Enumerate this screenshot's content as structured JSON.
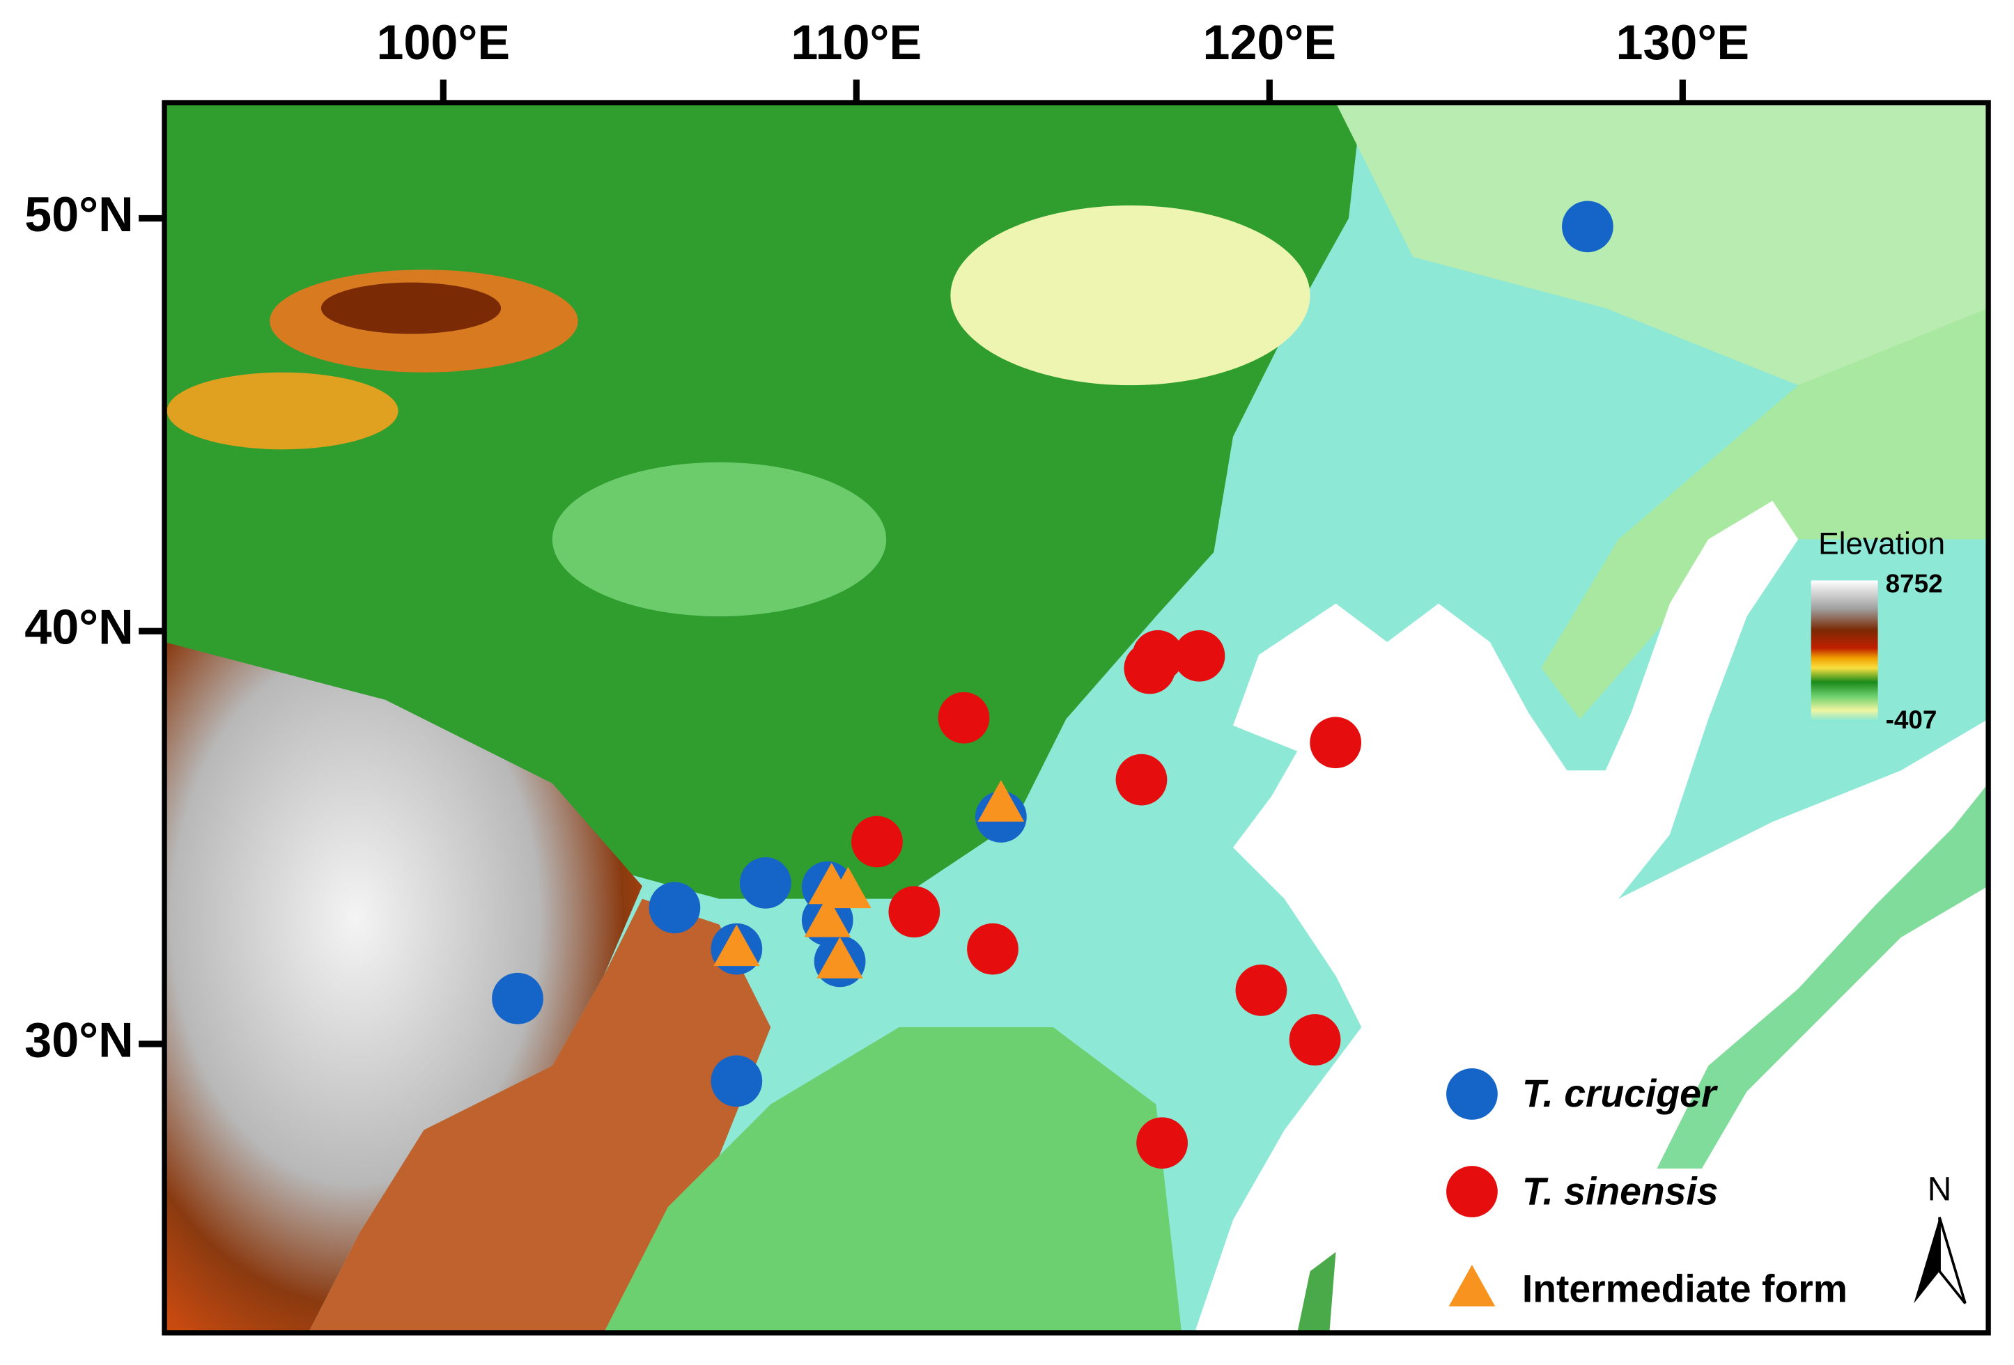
{
  "chart_data": {
    "type": "map",
    "xlim": [
      93.25,
      137.4
    ],
    "ylim": [
      23.0,
      52.8
    ],
    "xticks": [
      {
        "value": 100,
        "label": "100°E"
      },
      {
        "value": 110,
        "label": "110°E"
      },
      {
        "value": 120,
        "label": "120°E"
      },
      {
        "value": 130,
        "label": "130°E"
      }
    ],
    "yticks": [
      {
        "value": 30,
        "label": "30°N"
      },
      {
        "value": 40,
        "label": "40°N"
      },
      {
        "value": 50,
        "label": "50°N"
      }
    ],
    "series": [
      {
        "name": "T. cruciger",
        "color": "#1565c8",
        "marker": "circle",
        "lon": [
          127.7,
          101.8,
          105.6,
          107.8,
          107.1,
          109.3,
          109.3,
          109.6,
          107.1,
          113.5
        ],
        "lat": [
          49.8,
          31.1,
          33.3,
          33.9,
          32.3,
          33.8,
          33.0,
          32.0,
          29.1,
          35.5
        ]
      },
      {
        "name": "T. sinensis",
        "color": "#e50d0d",
        "marker": "circle",
        "lon": [
          117.1,
          117.3,
          118.3,
          112.6,
          121.6,
          116.9,
          110.5,
          111.4,
          113.3,
          119.8,
          121.1,
          117.4
        ],
        "lat": [
          39.1,
          39.4,
          39.4,
          37.9,
          37.3,
          36.4,
          34.9,
          33.2,
          32.3,
          31.3,
          30.1,
          27.6
        ]
      },
      {
        "name": "Intermediate form",
        "color": "#f7931e",
        "marker": "triangle",
        "lon": [
          113.5,
          109.4,
          109.8,
          109.3,
          107.1,
          109.6
        ],
        "lat": [
          35.8,
          33.8,
          33.7,
          33.0,
          32.3,
          32.0
        ]
      }
    ],
    "elevation_legend": {
      "title": "Elevation",
      "max": 8752,
      "min": -407
    },
    "north_label": "N"
  }
}
